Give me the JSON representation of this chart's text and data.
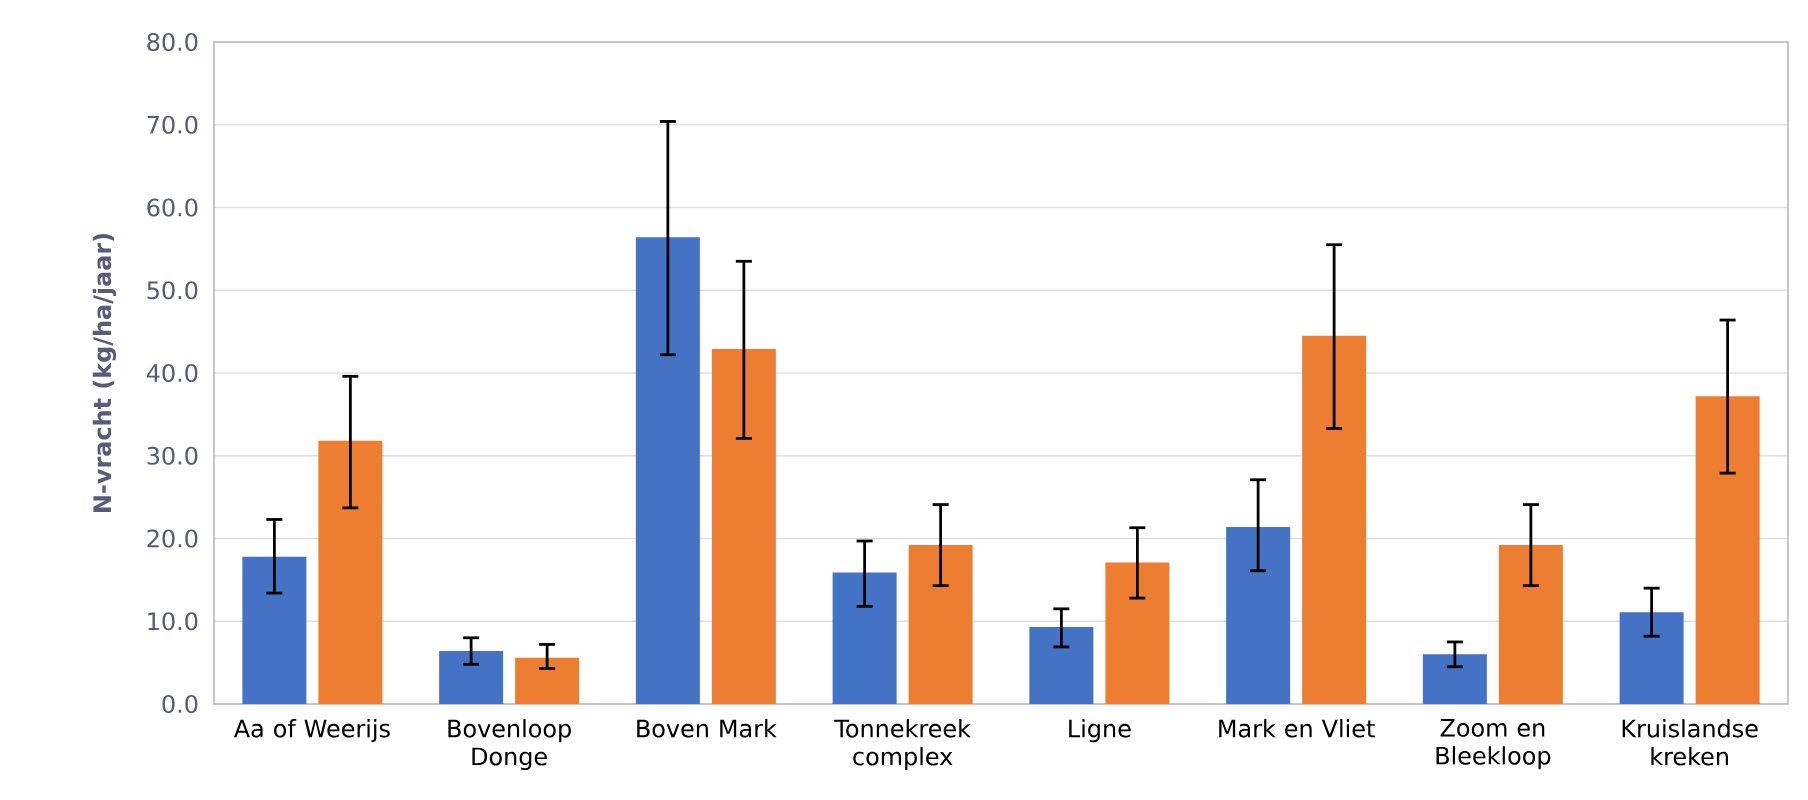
{
  "chart_data": {
    "type": "bar",
    "ylabel": "N-vracht (kg/ha/jaar)",
    "categories": [
      "Aa of Weerijs",
      "Bovenloop Donge",
      "Boven Mark",
      "Tonnekreek complex",
      "Ligne",
      "Mark en Vliet",
      "Zoom en Bleekloop",
      "Kruislandse kreken"
    ],
    "series": [
      {
        "color": "#4472c4",
        "values": [
          17.8,
          6.4,
          56.4,
          15.9,
          9.3,
          21.4,
          6.0,
          11.1
        ],
        "errors": [
          [
            13.4,
            22.3
          ],
          [
            4.8,
            8.0
          ],
          [
            42.2,
            70.4
          ],
          [
            11.8,
            19.7
          ],
          [
            6.9,
            11.5
          ],
          [
            16.1,
            27.1
          ],
          [
            4.5,
            7.5
          ],
          [
            8.2,
            14.0
          ]
        ]
      },
      {
        "color": "#ed7d31",
        "values": [
          31.8,
          5.6,
          42.9,
          19.2,
          17.1,
          44.5,
          19.2,
          37.2
        ],
        "errors": [
          [
            23.7,
            39.6
          ],
          [
            4.3,
            7.2
          ],
          [
            32.1,
            53.5
          ],
          [
            14.3,
            24.1
          ],
          [
            12.8,
            21.3
          ],
          [
            33.3,
            55.5
          ],
          [
            14.3,
            24.1
          ],
          [
            27.9,
            46.4
          ]
        ]
      }
    ],
    "ylim": [
      0,
      80
    ],
    "yticks": [
      {
        "value": 0,
        "label": "0.0"
      },
      {
        "value": 10,
        "label": "10.0"
      },
      {
        "value": 20,
        "label": "20.0"
      },
      {
        "value": 30,
        "label": "30.0"
      },
      {
        "value": 40,
        "label": "40.0"
      },
      {
        "value": 50,
        "label": "50.0"
      },
      {
        "value": 60,
        "label": "60.0"
      },
      {
        "value": 70,
        "label": "70.0"
      },
      {
        "value": 80,
        "label": "80.0"
      }
    ],
    "grid": "y"
  }
}
